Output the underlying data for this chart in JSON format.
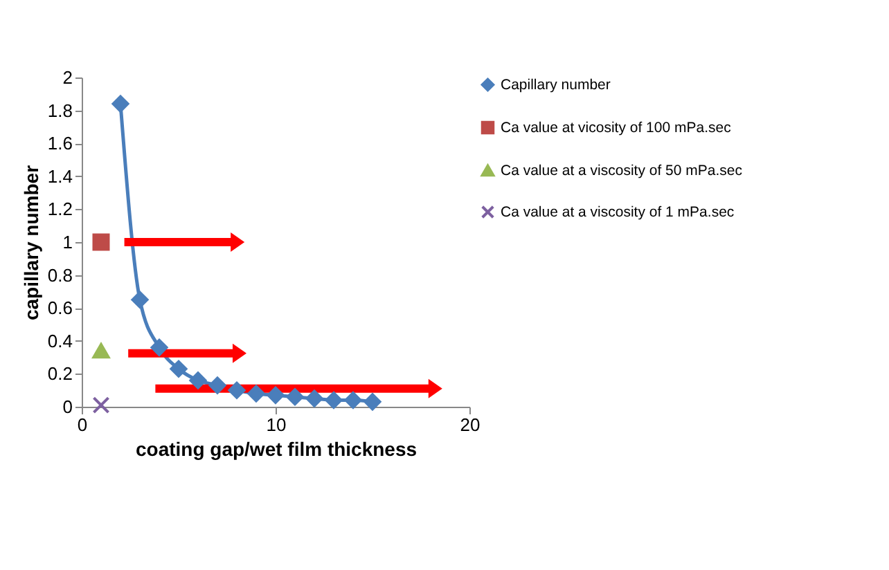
{
  "chart_data": {
    "type": "line",
    "xlabel": "coating gap/wet film thickness",
    "ylabel": "capillary number",
    "xlim": [
      0,
      20
    ],
    "xticks": [
      0,
      10,
      20
    ],
    "ylim": [
      0,
      2
    ],
    "yticks": [
      0,
      0.2,
      0.4,
      0.6,
      0.8,
      1,
      1.2,
      1.4,
      1.6,
      1.8,
      2
    ],
    "grid": false,
    "legend": "right",
    "series": [
      {
        "name": "Capillary number",
        "color": "#4a7ebb",
        "type": "line",
        "marker": "diamond",
        "x": [
          2,
          3,
          4,
          5,
          6,
          7,
          8,
          9,
          10,
          11,
          12,
          13,
          14,
          15
        ],
        "values": [
          1.84,
          0.65,
          0.36,
          0.23,
          0.16,
          0.13,
          0.1,
          0.08,
          0.07,
          0.06,
          0.05,
          0.04,
          0.04,
          0.03
        ]
      },
      {
        "name": "Ca value  at vicosity of 100 mPa.sec",
        "color": "#be4b48",
        "type": "scatter",
        "marker": "square",
        "x": [
          1
        ],
        "values": [
          1
        ]
      },
      {
        "name": "Ca value at a  viscosity of 50 mPa.sec",
        "color": "#98b954",
        "type": "scatter",
        "marker": "triangle",
        "x": [
          1
        ],
        "values": [
          0.34
        ]
      },
      {
        "name": "Ca value at a viscosity of 1 mPa.sec",
        "color": "#7d60a0",
        "type": "scatter",
        "marker": "cross",
        "x": [
          1
        ],
        "values": [
          0.01
        ]
      }
    ]
  }
}
